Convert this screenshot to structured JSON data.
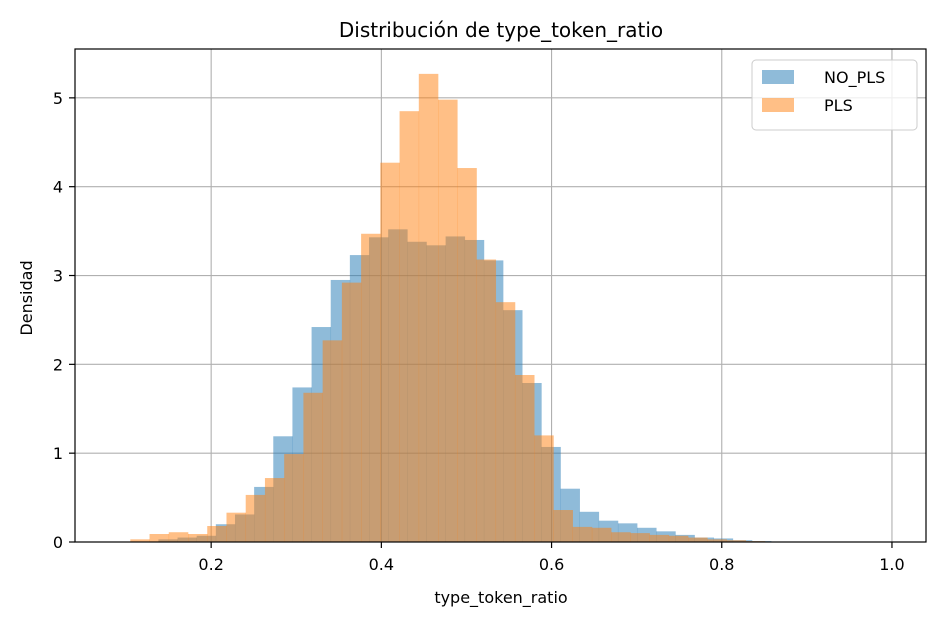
{
  "chart_data": {
    "type": "bar",
    "title": "Distribución de type_token_ratio",
    "xlabel": "type_token_ratio",
    "ylabel": "Densidad",
    "xlim": [
      0.04,
      1.04
    ],
    "ylim": [
      0,
      5.55
    ],
    "xticks": [
      "0.2",
      "0.4",
      "0.6",
      "0.8",
      "1.0"
    ],
    "yticks": [
      "0",
      "1",
      "2",
      "3",
      "4",
      "5"
    ],
    "grid": true,
    "legend_position": "top-right",
    "series": [
      {
        "name": "NO_PLS",
        "color": "#1f77b4",
        "opacity": 0.5,
        "bin_edges": [
          0.115,
          0.138,
          0.1605,
          0.183,
          0.2055,
          0.228,
          0.2505,
          0.273,
          0.2955,
          0.318,
          0.3405,
          0.363,
          0.3855,
          0.408,
          0.4305,
          0.453,
          0.4755,
          0.498,
          0.5205,
          0.543,
          0.5655,
          0.588,
          0.6105,
          0.633,
          0.6555,
          0.678,
          0.7005,
          0.723,
          0.7455,
          0.768,
          0.7905,
          0.813,
          0.8355,
          0.858,
          0.8805,
          0.903,
          0.9255,
          0.948,
          0.9705,
          0.993
        ],
        "values": [
          0.0,
          0.03,
          0.05,
          0.07,
          0.2,
          0.31,
          0.62,
          1.19,
          1.74,
          2.42,
          2.95,
          3.23,
          3.43,
          3.52,
          3.38,
          3.34,
          3.44,
          3.4,
          3.17,
          2.61,
          1.79,
          1.07,
          0.6,
          0.34,
          0.24,
          0.21,
          0.16,
          0.12,
          0.08,
          0.05,
          0.04,
          0.02,
          0.01,
          0.0,
          0.0,
          0.0,
          0.0,
          0.0,
          0.0
        ]
      },
      {
        "name": "PLS",
        "color": "#ff7f0e",
        "opacity": 0.5,
        "bin_edges": [
          0.105,
          0.1276,
          0.1502,
          0.1728,
          0.1954,
          0.218,
          0.2406,
          0.2632,
          0.2858,
          0.3084,
          0.331,
          0.3536,
          0.3762,
          0.3988,
          0.4214,
          0.444,
          0.4666,
          0.4892,
          0.5118,
          0.5344,
          0.557,
          0.5796,
          0.6022,
          0.6248,
          0.6474,
          0.67,
          0.6926,
          0.7152,
          0.7378,
          0.7604,
          0.783,
          0.8056,
          0.8282,
          0.8508,
          0.8734,
          0.896,
          0.9186,
          0.9412,
          0.9638,
          0.9864
        ],
        "values": [
          0.03,
          0.09,
          0.11,
          0.09,
          0.18,
          0.33,
          0.53,
          0.72,
          0.99,
          1.68,
          2.27,
          2.92,
          3.47,
          4.27,
          4.85,
          5.27,
          4.98,
          4.21,
          3.18,
          2.7,
          1.88,
          1.2,
          0.36,
          0.17,
          0.16,
          0.11,
          0.1,
          0.08,
          0.07,
          0.05,
          0.03,
          0.02,
          0.01,
          0.0,
          0.0,
          0.0,
          0.0,
          0.0,
          0.0
        ]
      }
    ]
  }
}
